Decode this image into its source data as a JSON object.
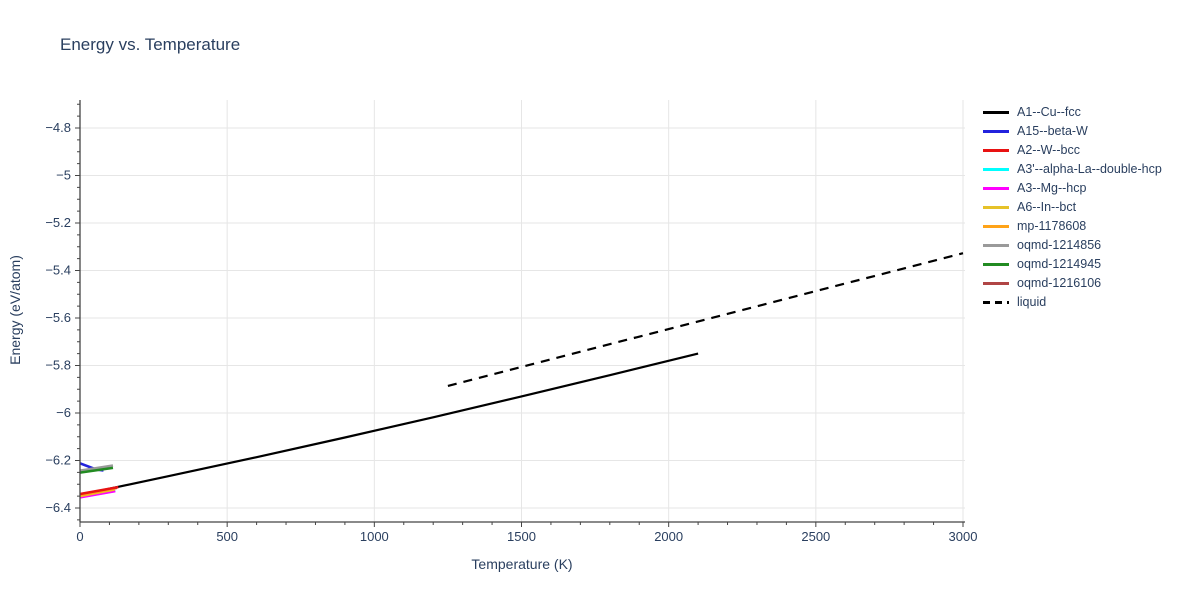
{
  "chart_data": {
    "type": "line",
    "title": "Energy vs. Temperature",
    "xlabel": "Temperature (K)",
    "ylabel": "Energy (eV/atom)",
    "xlim": [
      0,
      3007
    ],
    "ylim": [
      -6.459,
      -4.682
    ],
    "x_major_ticks": [
      0,
      500,
      1000,
      1500,
      2000,
      2500,
      3000
    ],
    "x_minor_step": 100,
    "y_major_ticks": [
      -4.8,
      -5.0,
      -5.2,
      -5.4,
      -5.6,
      -5.8,
      -6.0,
      -6.2,
      -6.4
    ],
    "y_minor_step": 0.05,
    "grid": true,
    "legend_position": "top-right-outside",
    "style": {
      "grid_color": "#e6e6e6",
      "axis_color": "#444444",
      "text_color": "#2a3f5f",
      "background": "#ffffff"
    },
    "draw_order": [
      3,
      9,
      0,
      4,
      5,
      6,
      2,
      1,
      7,
      8,
      10
    ],
    "series": [
      {
        "name": "A1--Cu--fcc",
        "color": "#000000",
        "dash": "solid",
        "width": 2.2,
        "points": [
          [
            0,
            -6.345
          ],
          [
            300,
            -6.266
          ],
          [
            600,
            -6.186
          ],
          [
            900,
            -6.103
          ],
          [
            1200,
            -6.018
          ],
          [
            1500,
            -5.93
          ],
          [
            1800,
            -5.841
          ],
          [
            2100,
            -5.75
          ]
        ]
      },
      {
        "name": "A15--beta-W",
        "color": "#2222dd",
        "dash": "solid",
        "width": 2.6,
        "points": [
          [
            0,
            -6.212
          ],
          [
            55,
            -6.238
          ],
          [
            80,
            -6.242
          ]
        ]
      },
      {
        "name": "A2--W--bcc",
        "color": "#e81212",
        "dash": "solid",
        "width": 2.6,
        "points": [
          [
            0,
            -6.341
          ],
          [
            130,
            -6.312
          ]
        ]
      },
      {
        "name": "A3'--alpha-La--double-hcp",
        "color": "#00ffff",
        "dash": "solid",
        "width": 2.6,
        "points": [
          [
            0,
            -6.354
          ],
          [
            120,
            -6.328
          ]
        ]
      },
      {
        "name": "A3--Mg--hcp",
        "color": "#ff00ff",
        "dash": "solid",
        "width": 2.6,
        "points": [
          [
            0,
            -6.355
          ],
          [
            120,
            -6.329
          ]
        ]
      },
      {
        "name": "A6--In--bct",
        "color": "#e6c229",
        "dash": "solid",
        "width": 2.6,
        "points": [
          [
            0,
            -6.35
          ],
          [
            118,
            -6.322
          ]
        ]
      },
      {
        "name": "mp-1178608",
        "color": "#ffa318",
        "dash": "solid",
        "width": 2.6,
        "points": [
          [
            0,
            -6.346
          ],
          [
            120,
            -6.317
          ]
        ]
      },
      {
        "name": "oqmd-1214856",
        "color": "#9a9a9a",
        "dash": "solid",
        "width": 2.6,
        "points": [
          [
            0,
            -6.243
          ],
          [
            112,
            -6.221
          ]
        ]
      },
      {
        "name": "oqmd-1214945",
        "color": "#228b22",
        "dash": "solid",
        "width": 2.6,
        "points": [
          [
            0,
            -6.251
          ],
          [
            112,
            -6.231
          ]
        ]
      },
      {
        "name": "oqmd-1216106",
        "color": "#b04545",
        "dash": "solid",
        "width": 2.6,
        "points": [
          [
            0,
            -6.343
          ],
          [
            125,
            -6.315
          ]
        ]
      },
      {
        "name": "liquid",
        "color": "#000000",
        "dash": "dashed",
        "width": 2.2,
        "points": [
          [
            1250,
            -5.886
          ],
          [
            3000,
            -5.327
          ]
        ]
      }
    ]
  }
}
